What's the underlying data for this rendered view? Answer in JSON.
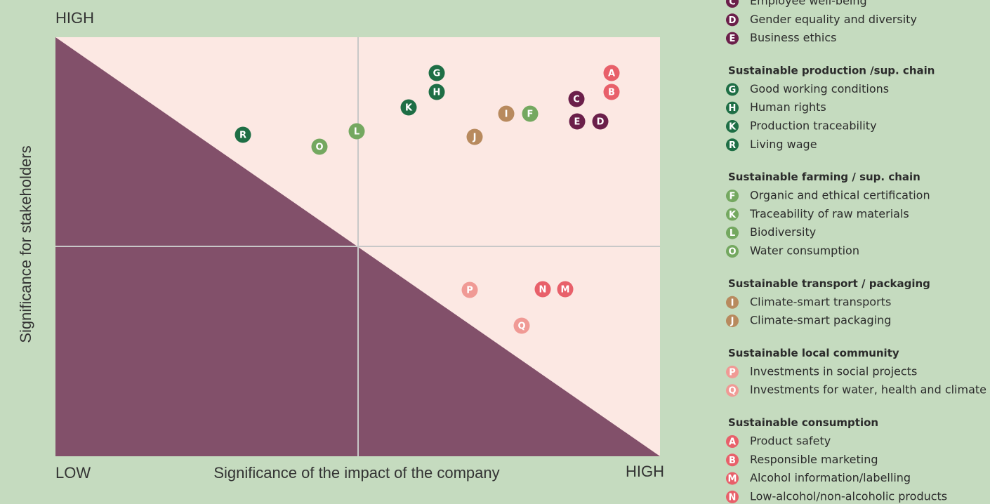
{
  "axes": {
    "y_high": "HIGH",
    "y_label": "Significance for stakeholders",
    "x_low": "LOW",
    "x_label": "Significance of the impact of the company",
    "x_high": "HIGH"
  },
  "colors": {
    "dark_purple": "#6b1f4a",
    "dark_green": "#1e6e45",
    "light_green": "#74a860",
    "tan": "#b88a5e",
    "light_pink": "#f09a95",
    "red_pink": "#e8606a"
  },
  "points": [
    {
      "letter": "A",
      "color": "red_pink"
    },
    {
      "letter": "B",
      "color": "red_pink"
    },
    {
      "letter": "C",
      "color": "dark_purple"
    },
    {
      "letter": "D",
      "color": "dark_purple"
    },
    {
      "letter": "E",
      "color": "dark_purple"
    },
    {
      "letter": "G",
      "color": "dark_green"
    },
    {
      "letter": "H",
      "color": "dark_green"
    },
    {
      "letter": "K",
      "color": "dark_green"
    },
    {
      "letter": "R",
      "color": "dark_green"
    },
    {
      "letter": "O",
      "color": "light_green"
    },
    {
      "letter": "L",
      "color": "light_green"
    },
    {
      "letter": "F",
      "color": "light_green"
    },
    {
      "letter": "I",
      "color": "tan"
    },
    {
      "letter": "J",
      "color": "tan"
    },
    {
      "letter": "P",
      "color": "light_pink"
    },
    {
      "letter": "Q",
      "color": "light_pink"
    },
    {
      "letter": "N",
      "color": "red_pink"
    },
    {
      "letter": "M",
      "color": "red_pink"
    }
  ],
  "legend": [
    {
      "items": [
        {
          "letter": "C",
          "color": "dark_purple",
          "text": "Employee well-being"
        },
        {
          "letter": "D",
          "color": "dark_purple",
          "text": "Gender equality and diversity"
        },
        {
          "letter": "E",
          "color": "dark_purple",
          "text": "Business ethics"
        }
      ]
    },
    {
      "title": "Sustainable production /sup. chain",
      "items": [
        {
          "letter": "G",
          "color": "dark_green",
          "text": "Good working conditions"
        },
        {
          "letter": "H",
          "color": "dark_green",
          "text": "Human rights"
        },
        {
          "letter": "K",
          "color": "dark_green",
          "text": "Production traceability"
        },
        {
          "letter": "R",
          "color": "dark_green",
          "text": "Living wage"
        }
      ]
    },
    {
      "title": "Sustainable farming / sup. chain",
      "items": [
        {
          "letter": "F",
          "color": "light_green",
          "text": "Organic and ethical certification"
        },
        {
          "letter": "K",
          "color": "light_green",
          "text": "Traceability of raw materials"
        },
        {
          "letter": "L",
          "color": "light_green",
          "text": "Biodiversity"
        },
        {
          "letter": "O",
          "color": "light_green",
          "text": "Water consumption"
        }
      ]
    },
    {
      "title": "Sustainable transport / packaging",
      "items": [
        {
          "letter": "I",
          "color": "tan",
          "text": "Climate-smart transports"
        },
        {
          "letter": "J",
          "color": "tan",
          "text": "Climate-smart packaging"
        }
      ]
    },
    {
      "title": "Sustainable local community",
      "items": [
        {
          "letter": "P",
          "color": "light_pink",
          "text": "Investments in social projects"
        },
        {
          "letter": "Q",
          "color": "light_pink",
          "text": "Investments for water, health and climate"
        }
      ]
    },
    {
      "title": "Sustainable consumption",
      "items": [
        {
          "letter": "A",
          "color": "red_pink",
          "text": "Product safety"
        },
        {
          "letter": "B",
          "color": "red_pink",
          "text": "Responsible marketing"
        },
        {
          "letter": "M",
          "color": "red_pink",
          "text": "Alcohol information/labelling"
        },
        {
          "letter": "N",
          "color": "red_pink",
          "text": "Low-alcohol/non-alcoholic products"
        }
      ]
    }
  ]
}
